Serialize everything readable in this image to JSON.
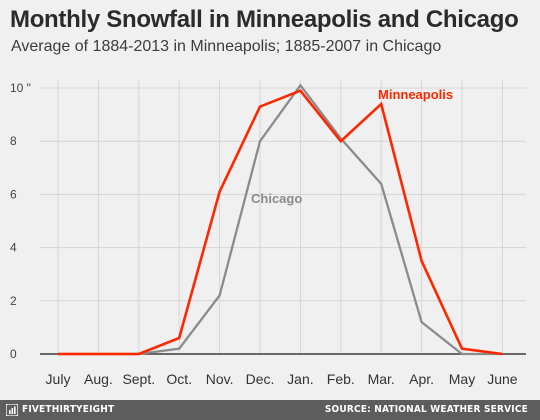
{
  "header": {
    "title": "Monthly Snowfall in Minneapolis and Chicago",
    "subtitle": "Average of 1884-2013 in Minneapolis; 1885-2007 in Chicago"
  },
  "footer": {
    "brand": "FIVETHIRTYEIGHT",
    "source": "SOURCE: NATIONAL WEATHER SERVICE"
  },
  "chart_data": {
    "type": "line",
    "title": "Monthly Snowfall in Minneapolis and Chicago",
    "subtitle": "Average of 1884-2013 in Minneapolis; 1885-2007 in Chicago",
    "categories": [
      "July",
      "Aug.",
      "Sept.",
      "Oct.",
      "Nov.",
      "Dec.",
      "Jan.",
      "Feb.",
      "Mar.",
      "Apr.",
      "May",
      "June"
    ],
    "ylim": [
      0,
      10
    ],
    "yticks": [
      0,
      2,
      4,
      6,
      8,
      10
    ],
    "ytick_labels": [
      "0",
      "2",
      "4",
      "6",
      "8",
      "10 \""
    ],
    "grid": true,
    "series": [
      {
        "name": "Minneapolis",
        "color": "#ff2700",
        "values": [
          0,
          0,
          0,
          0.6,
          6.1,
          9.3,
          9.9,
          8.0,
          9.4,
          3.5,
          0.2,
          0
        ]
      },
      {
        "name": "Chicago",
        "color": "#8b8b8b",
        "values": [
          0,
          0,
          0,
          0.2,
          2.2,
          8.0,
          10.1,
          8.1,
          6.4,
          1.2,
          0,
          0
        ]
      }
    ]
  }
}
